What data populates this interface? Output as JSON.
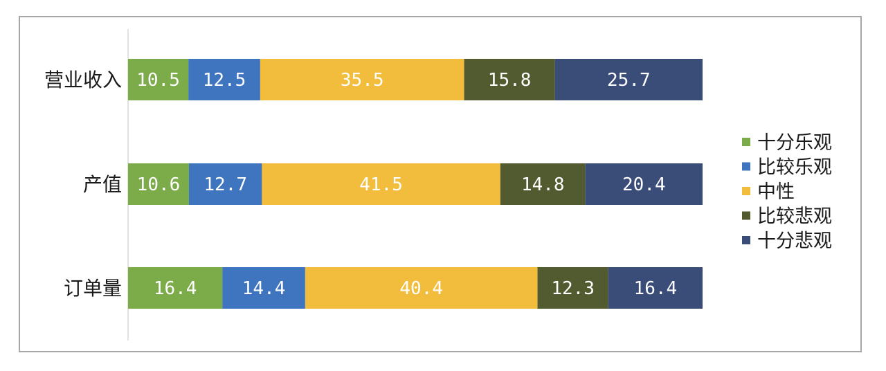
{
  "chart_data": {
    "type": "bar",
    "orientation": "horizontal",
    "stacked": true,
    "categories": [
      "营业收入",
      "产值",
      "订单量"
    ],
    "series": [
      {
        "name": "十分乐观",
        "color": "#7cab4a",
        "values": [
          10.5,
          10.6,
          16.4
        ]
      },
      {
        "name": "比较乐观",
        "color": "#3f74be",
        "values": [
          12.5,
          12.7,
          14.4
        ]
      },
      {
        "name": "中性",
        "color": "#f2bd3c",
        "values": [
          35.5,
          41.5,
          40.4
        ]
      },
      {
        "name": "比较悲观",
        "color": "#525a30",
        "values": [
          15.8,
          14.8,
          12.3
        ]
      },
      {
        "name": "十分悲观",
        "color": "#3a4c78",
        "values": [
          25.7,
          20.4,
          16.4
        ]
      }
    ],
    "data_labels": [
      [
        "10.5",
        "12.5",
        "35.5",
        "15.8",
        "25.7"
      ],
      [
        "10.6",
        "12.7",
        "41.5",
        "14.8",
        "20.4"
      ],
      [
        "16.4",
        "14.4",
        "40.4",
        "12.3",
        "16.4"
      ]
    ],
    "xlim": [
      0,
      100
    ],
    "grid": false,
    "legend_position": "right"
  }
}
